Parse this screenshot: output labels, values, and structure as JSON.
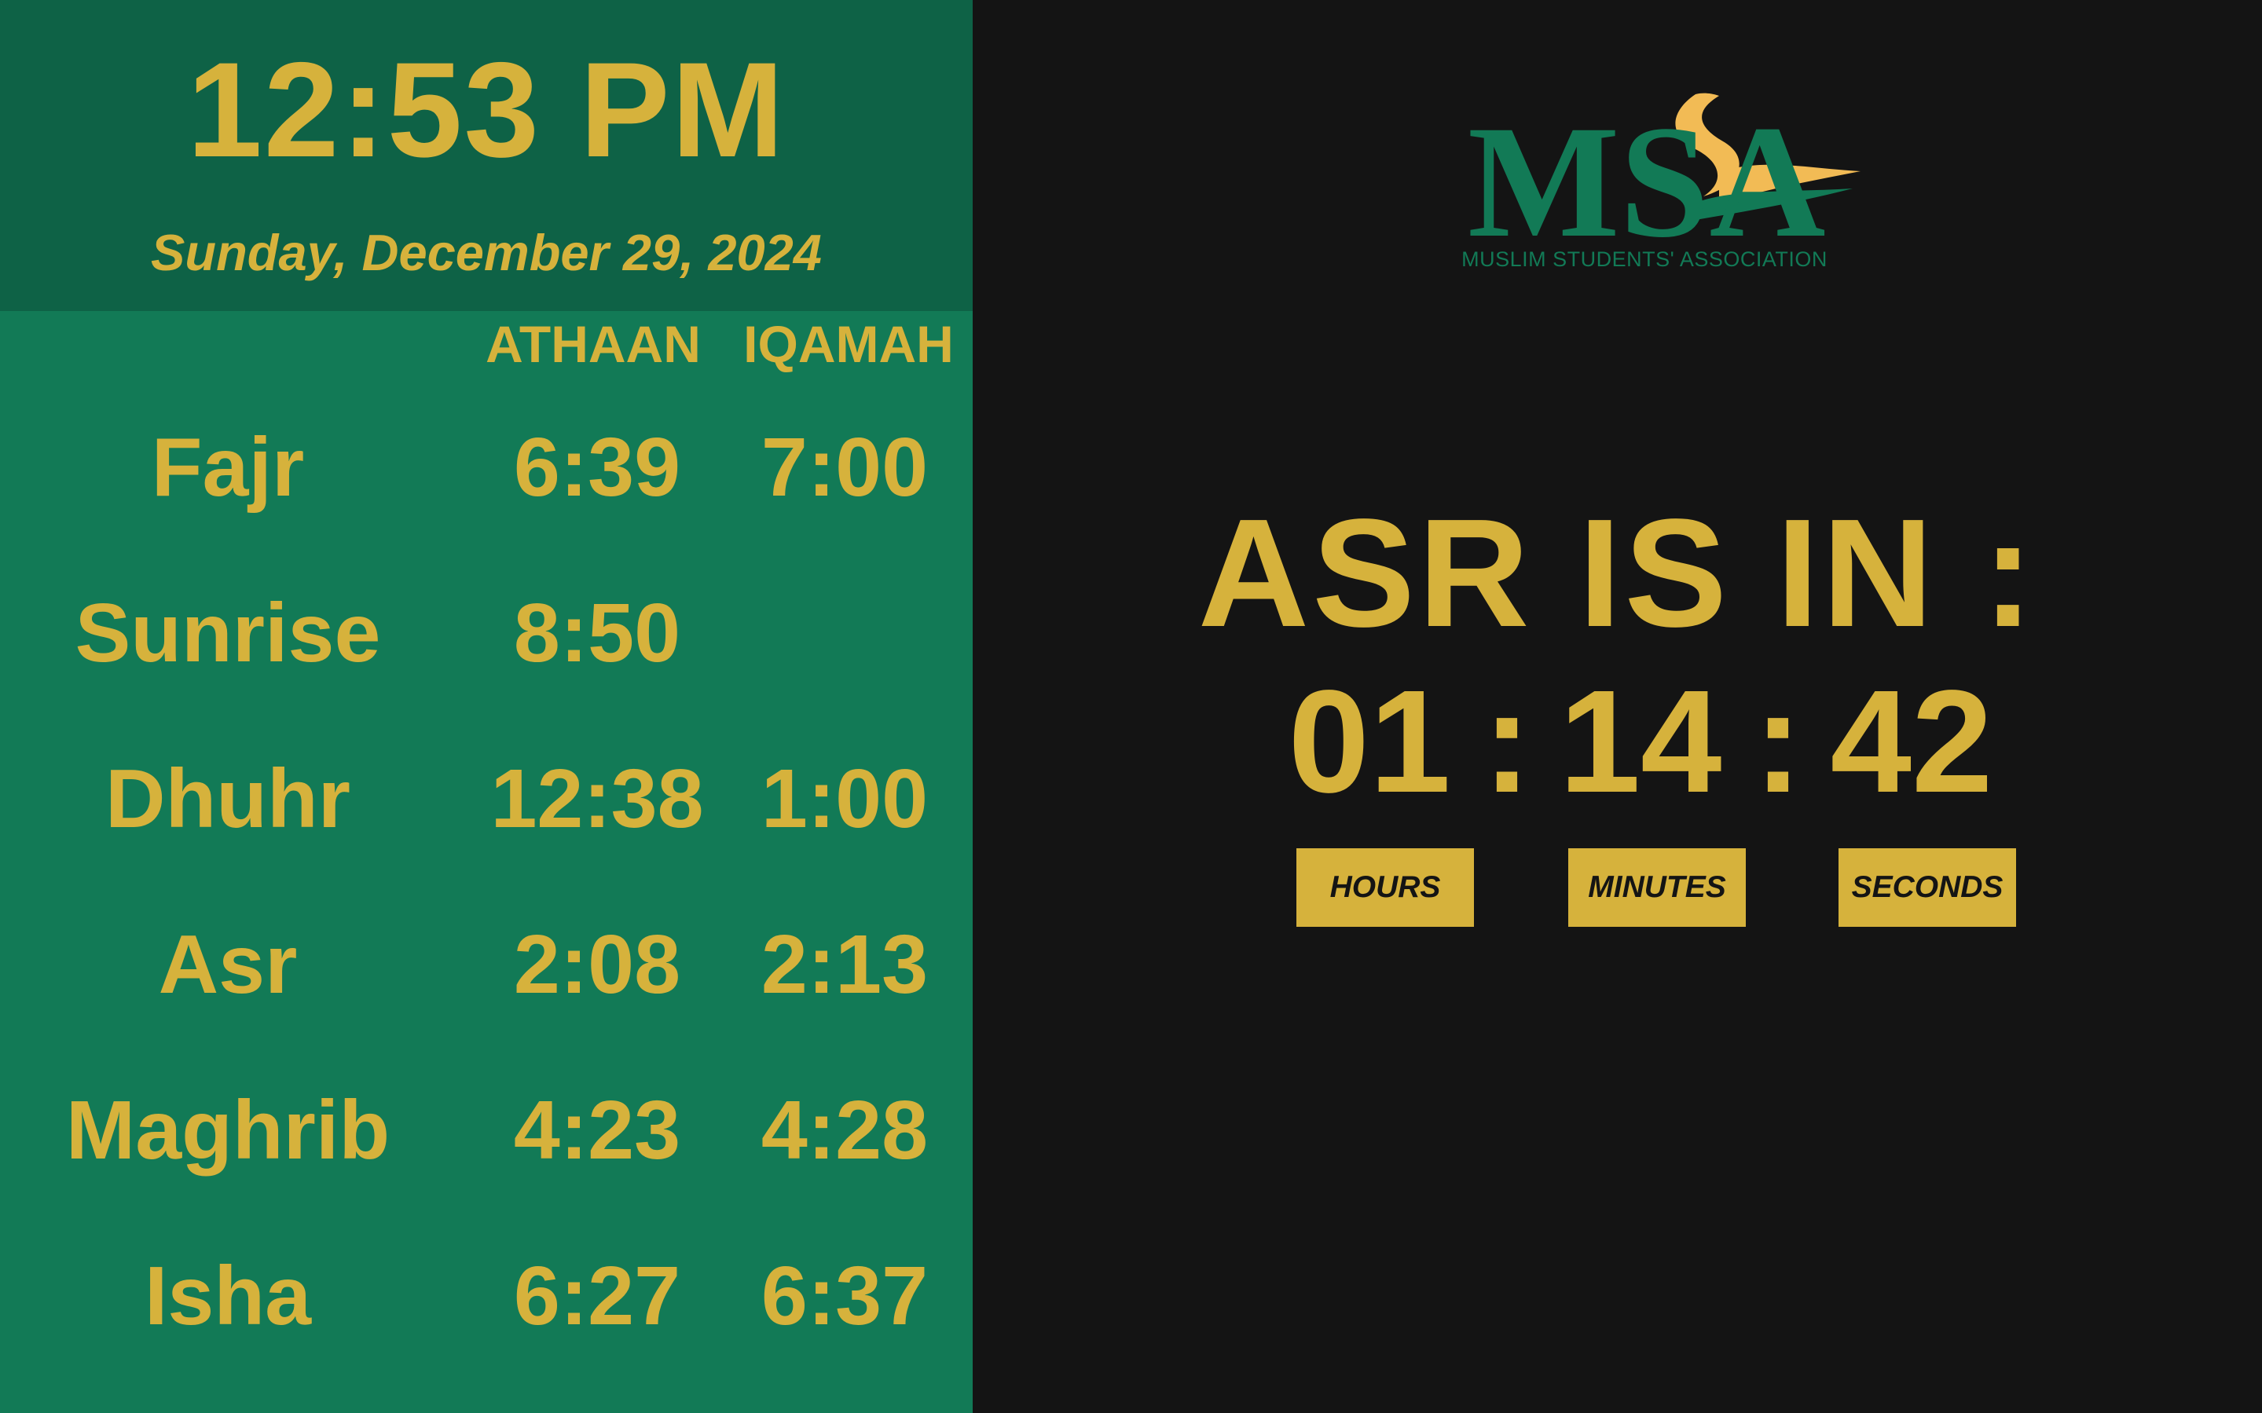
{
  "clock": {
    "time": "12:53 PM",
    "date": "Sunday, December 29, 2024"
  },
  "columns": {
    "athaan": "ATHAAN",
    "iqamah": "IQAMAH"
  },
  "prayers": [
    {
      "name": "Fajr",
      "athaan": "6:39",
      "iqamah": "7:00"
    },
    {
      "name": "Sunrise",
      "athaan": "8:50",
      "iqamah": ""
    },
    {
      "name": "Dhuhr",
      "athaan": "12:38",
      "iqamah": "1:00"
    },
    {
      "name": "Asr",
      "athaan": "2:08",
      "iqamah": "2:13"
    },
    {
      "name": "Maghrib",
      "athaan": "4:23",
      "iqamah": "4:28"
    },
    {
      "name": "Isha",
      "athaan": "6:27",
      "iqamah": "6:37"
    }
  ],
  "logo": {
    "text": "MSA",
    "caption": "MUSLIM STUDENTS' ASSOCIATION"
  },
  "countdown": {
    "title": "ASR IS IN :",
    "hours": "01",
    "minutes": "14",
    "seconds": "42",
    "separator": ":",
    "labels": {
      "hours": "HOURS",
      "minutes": "MINUTES",
      "seconds": "SECONDS"
    }
  },
  "colors": {
    "header_green": "#0e6246",
    "panel_green": "#127a56",
    "gold": "#d6b23c",
    "background": "#141414"
  }
}
